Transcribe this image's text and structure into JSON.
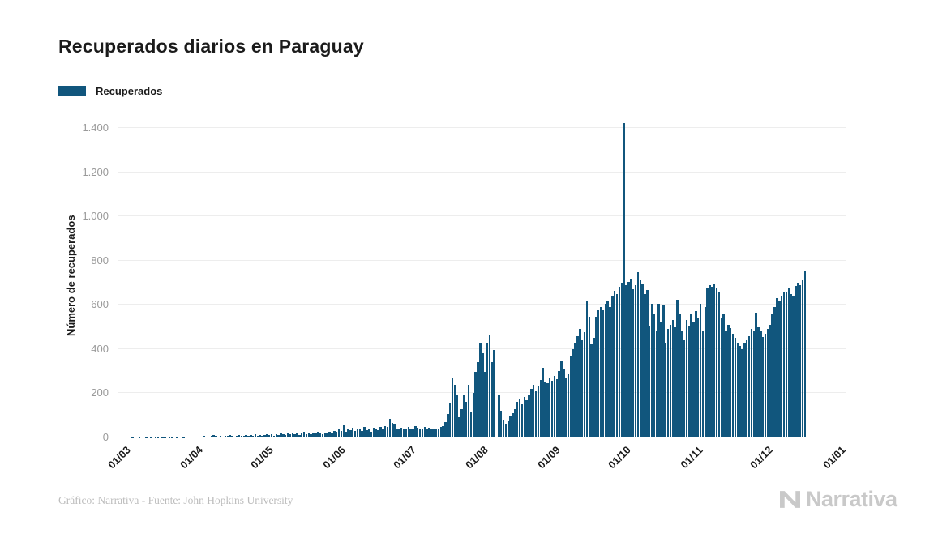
{
  "page": {
    "title": "Recuperados diarios en Paraguay",
    "legend": {
      "label": "Recuperados",
      "swatch_color": "#11567D"
    },
    "footer": {
      "credit": "Gráfico: Narrativa - Fuente: John Hopkins University"
    },
    "brand": {
      "name": "Narrativa",
      "logo_color": "#c9c9c9"
    }
  },
  "chart_data": {
    "type": "bar",
    "title": "Recuperados diarios en Paraguay",
    "series_name": "Recuperados",
    "xlabel": "",
    "ylabel": "Número de recuperados",
    "ylim": [
      0,
      1400
    ],
    "grid": true,
    "legend_position": "top-left",
    "bar_color": "#11567D",
    "x_is_daily_dates": true,
    "x_axis_total_days": 306,
    "yticks": [
      {
        "value": 0,
        "label": "0"
      },
      {
        "value": 200,
        "label": "200"
      },
      {
        "value": 400,
        "label": "400"
      },
      {
        "value": 600,
        "label": "600"
      },
      {
        "value": 800,
        "label": "800"
      },
      {
        "value": 1000,
        "label": "1.000"
      },
      {
        "value": 1200,
        "label": "1.200"
      },
      {
        "value": 1400,
        "label": "1.400"
      }
    ],
    "xticks": [
      {
        "day": 0,
        "label": "01/03"
      },
      {
        "day": 31,
        "label": "01/04"
      },
      {
        "day": 61,
        "label": "01/05"
      },
      {
        "day": 92,
        "label": "01/06"
      },
      {
        "day": 122,
        "label": "01/07"
      },
      {
        "day": 153,
        "label": "01/08"
      },
      {
        "day": 184,
        "label": "01/09"
      },
      {
        "day": 214,
        "label": "01/10"
      },
      {
        "day": 245,
        "label": "01/11"
      },
      {
        "day": 275,
        "label": "01/12"
      },
      {
        "day": 306,
        "label": "01/01"
      }
    ],
    "values": [
      0,
      0,
      0,
      0,
      0,
      1,
      0,
      0,
      1,
      0,
      0,
      1,
      0,
      1,
      0,
      1,
      1,
      0,
      1,
      1,
      2,
      1,
      1,
      2,
      1,
      2,
      2,
      1,
      2,
      2,
      2,
      2,
      3,
      5,
      2,
      4,
      6,
      3,
      5,
      8,
      10,
      6,
      4,
      8,
      5,
      9,
      6,
      11,
      7,
      5,
      9,
      12,
      8,
      6,
      10,
      7,
      12,
      9,
      14,
      8,
      11,
      9,
      12,
      15,
      10,
      14,
      8,
      16,
      12,
      18,
      14,
      10,
      17,
      13,
      19,
      15,
      21,
      12,
      18,
      24,
      16,
      20,
      14,
      22,
      17,
      25,
      19,
      15,
      23,
      18,
      26,
      21,
      28,
      24,
      35,
      30,
      54,
      26,
      38,
      32,
      45,
      28,
      42,
      36,
      30,
      48,
      34,
      40,
      26,
      44,
      38,
      32,
      46,
      40,
      52,
      48,
      83,
      65,
      58,
      42,
      38,
      44,
      40,
      36,
      48,
      42,
      38,
      50,
      44,
      40,
      42,
      46,
      38,
      44,
      40,
      36,
      42,
      38,
      46,
      52,
      70,
      107,
      155,
      268,
      240,
      190,
      92,
      130,
      190,
      160,
      238,
      113,
      200,
      298,
      340,
      430,
      380,
      298,
      430,
      465,
      340,
      395,
      2,
      190,
      120,
      80,
      60,
      75,
      95,
      110,
      130,
      160,
      175,
      150,
      185,
      170,
      195,
      220,
      240,
      210,
      235,
      260,
      315,
      250,
      245,
      270,
      255,
      280,
      265,
      300,
      345,
      310,
      270,
      285,
      370,
      400,
      430,
      460,
      490,
      440,
      475,
      620,
      545,
      420,
      450,
      545,
      575,
      590,
      575,
      605,
      620,
      590,
      640,
      665,
      650,
      680,
      700,
      1423,
      690,
      705,
      720,
      670,
      690,
      747,
      710,
      692,
      648,
      666,
      507,
      603,
      560,
      480,
      605,
      520,
      600,
      430,
      490,
      510,
      530,
      500,
      622,
      560,
      480,
      440,
      530,
      505,
      561,
      520,
      573,
      540,
      603,
      480,
      590,
      674,
      690,
      680,
      696,
      674,
      660,
      540,
      560,
      480,
      510,
      495,
      470,
      450,
      430,
      415,
      400,
      425,
      440,
      460,
      490,
      480,
      566,
      500,
      480,
      455,
      470,
      490,
      510,
      560,
      590,
      630,
      620,
      640,
      655,
      660,
      675,
      648,
      640,
      685,
      700,
      690,
      710,
      750
    ]
  }
}
